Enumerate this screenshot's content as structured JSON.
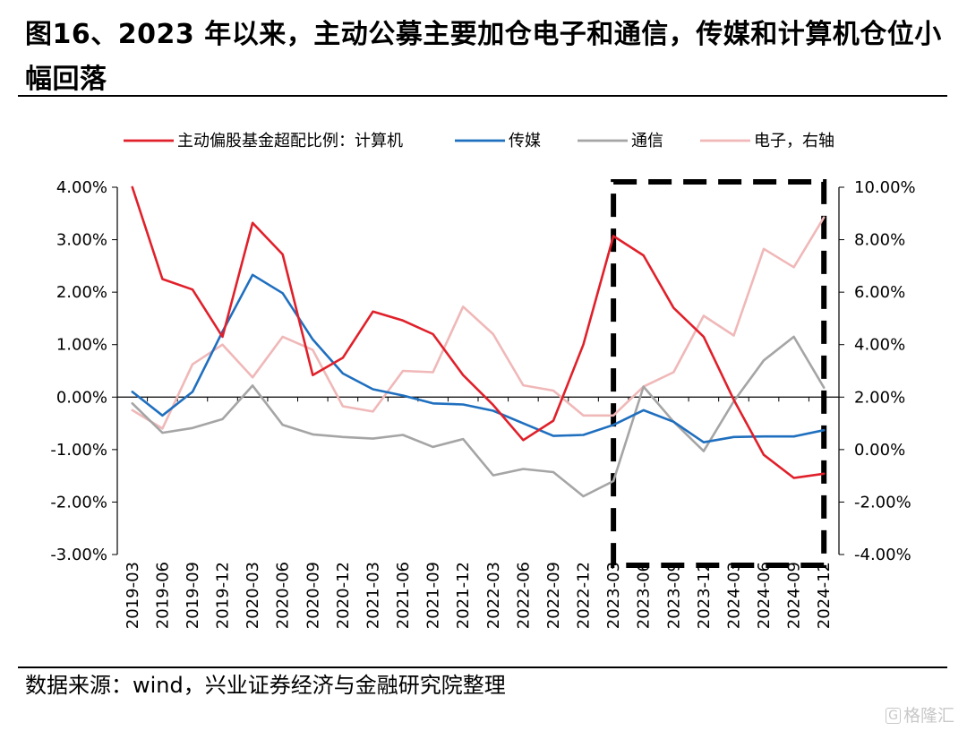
{
  "title": "图16、2023 年以来，主动公募主要加仓电子和通信，传媒和计算机仓位小幅回落",
  "source": "数据来源：wind，兴业证券经济与金融研究院整理",
  "watermark": {
    "icon": "G",
    "text": "格隆汇"
  },
  "chart_data": {
    "type": "line",
    "categories": [
      "2019-03",
      "2019-06",
      "2019-09",
      "2019-12",
      "2020-03",
      "2020-06",
      "2020-09",
      "2020-12",
      "2021-03",
      "2021-06",
      "2021-09",
      "2021-12",
      "2022-03",
      "2022-06",
      "2022-09",
      "2022-12",
      "2023-03",
      "2023-06",
      "2023-09",
      "2023-12",
      "2024-03",
      "2024-06",
      "2024-09",
      "2024-12"
    ],
    "y_left": {
      "ticks": [
        "-3.00%",
        "-2.00%",
        "-1.00%",
        "0.00%",
        "1.00%",
        "2.00%",
        "3.00%",
        "4.00%"
      ],
      "range": [
        -3,
        4
      ]
    },
    "y_right": {
      "ticks": [
        "-4.00%",
        "-2.00%",
        "0.00%",
        "2.00%",
        "4.00%",
        "6.00%",
        "8.00%",
        "10.00%"
      ],
      "range": [
        -4,
        10
      ]
    },
    "series": [
      {
        "name": "主动偏股基金超配比例：计算机",
        "axis": "left",
        "color": "#e0202a",
        "values": [
          4.0,
          2.25,
          2.05,
          1.15,
          3.32,
          2.72,
          0.42,
          0.75,
          1.63,
          1.46,
          1.2,
          0.42,
          -0.15,
          -0.82,
          -0.45,
          1.0,
          3.07,
          2.7,
          1.7,
          1.15,
          -0.05,
          -1.1,
          -1.54,
          -1.46
        ]
      },
      {
        "name": "传媒",
        "axis": "left",
        "color": "#1f6fbf",
        "values": [
          0.1,
          -0.35,
          0.1,
          1.25,
          2.33,
          1.98,
          1.1,
          0.45,
          0.15,
          0.03,
          -0.12,
          -0.14,
          -0.26,
          -0.5,
          -0.74,
          -0.72,
          -0.53,
          -0.25,
          -0.47,
          -0.86,
          -0.76,
          -0.75,
          -0.75,
          -0.63
        ]
      },
      {
        "name": "通信",
        "axis": "left",
        "color": "#a5a5a5",
        "values": [
          -0.12,
          -0.68,
          -0.59,
          -0.42,
          0.22,
          -0.53,
          -0.71,
          -0.76,
          -0.79,
          -0.72,
          -0.95,
          -0.8,
          -1.49,
          -1.37,
          -1.43,
          -1.89,
          -1.6,
          0.2,
          -0.47,
          -1.03,
          -0.08,
          0.7,
          1.15,
          0.18
        ]
      },
      {
        "name": "电子，右轴",
        "axis": "right",
        "color": "#f0b8b8",
        "values": [
          1.5,
          0.8,
          3.25,
          4.0,
          2.75,
          4.3,
          3.8,
          1.65,
          1.45,
          3.0,
          2.95,
          5.45,
          4.4,
          2.45,
          2.25,
          1.3,
          1.3,
          2.4,
          2.95,
          5.1,
          4.35,
          7.65,
          6.95,
          8.85
        ]
      }
    ],
    "legend_position": "top",
    "grid": false,
    "highlight_box": {
      "from": "2023-03",
      "to": "2024-12",
      "style": "dashed"
    }
  }
}
